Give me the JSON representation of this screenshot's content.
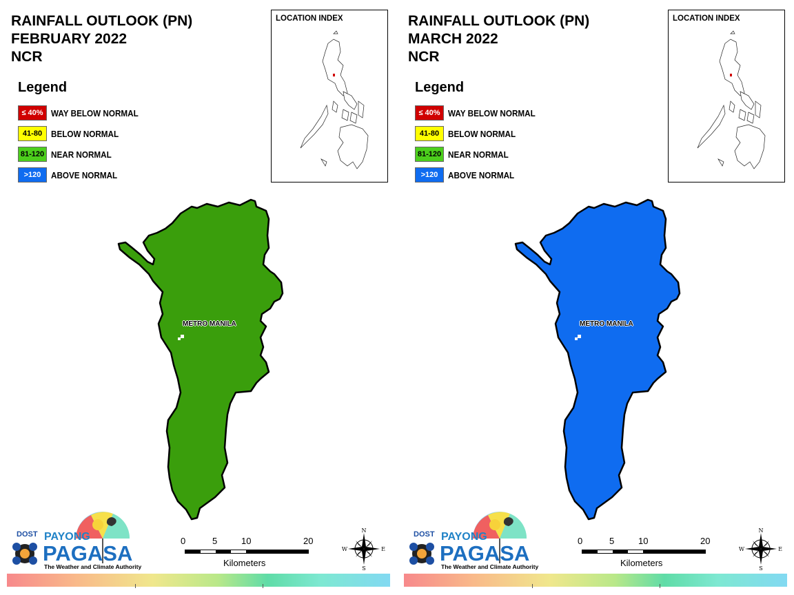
{
  "panels": [
    {
      "title_line1": "RAINFALL OUTLOOK (PN)",
      "title_line2": "FEBRUARY 2022",
      "title_line3": "NCR",
      "region_fill": "#3a9e0c"
    },
    {
      "title_line1": "RAINFALL OUTLOOK (PN)",
      "title_line2": "MARCH 2022",
      "title_line3": "NCR",
      "region_fill": "#0f6cf0"
    }
  ],
  "legend": {
    "title": "Legend",
    "items": [
      {
        "range": "≤ 40%",
        "label": "WAY BELOW NORMAL",
        "color": "#d00000",
        "text_color": "#ffffff"
      },
      {
        "range": "41-80",
        "label": "BELOW NORMAL",
        "color": "#ffff00",
        "text_color": "#000000"
      },
      {
        "range": "81-120",
        "label": "NEAR NORMAL",
        "color": "#4ccf1c",
        "text_color": "#000000"
      },
      {
        "range": ">120",
        "label": "ABOVE NORMAL",
        "color": "#0f6cf0",
        "text_color": "#ffffff"
      }
    ]
  },
  "location_index": {
    "title": "LOCATION INDEX"
  },
  "map_label": "METRO MANILA",
  "scale": {
    "ticks": [
      "0",
      "5",
      "10",
      "20"
    ],
    "unit": "Kilometers"
  },
  "compass": {
    "n": "N",
    "s": "S",
    "e": "E",
    "w": "W"
  },
  "logo": {
    "dost": "DOST",
    "payong": "PAYONG",
    "pagasa": "PAGASA",
    "tagline": "The Weather and Climate Authority"
  }
}
